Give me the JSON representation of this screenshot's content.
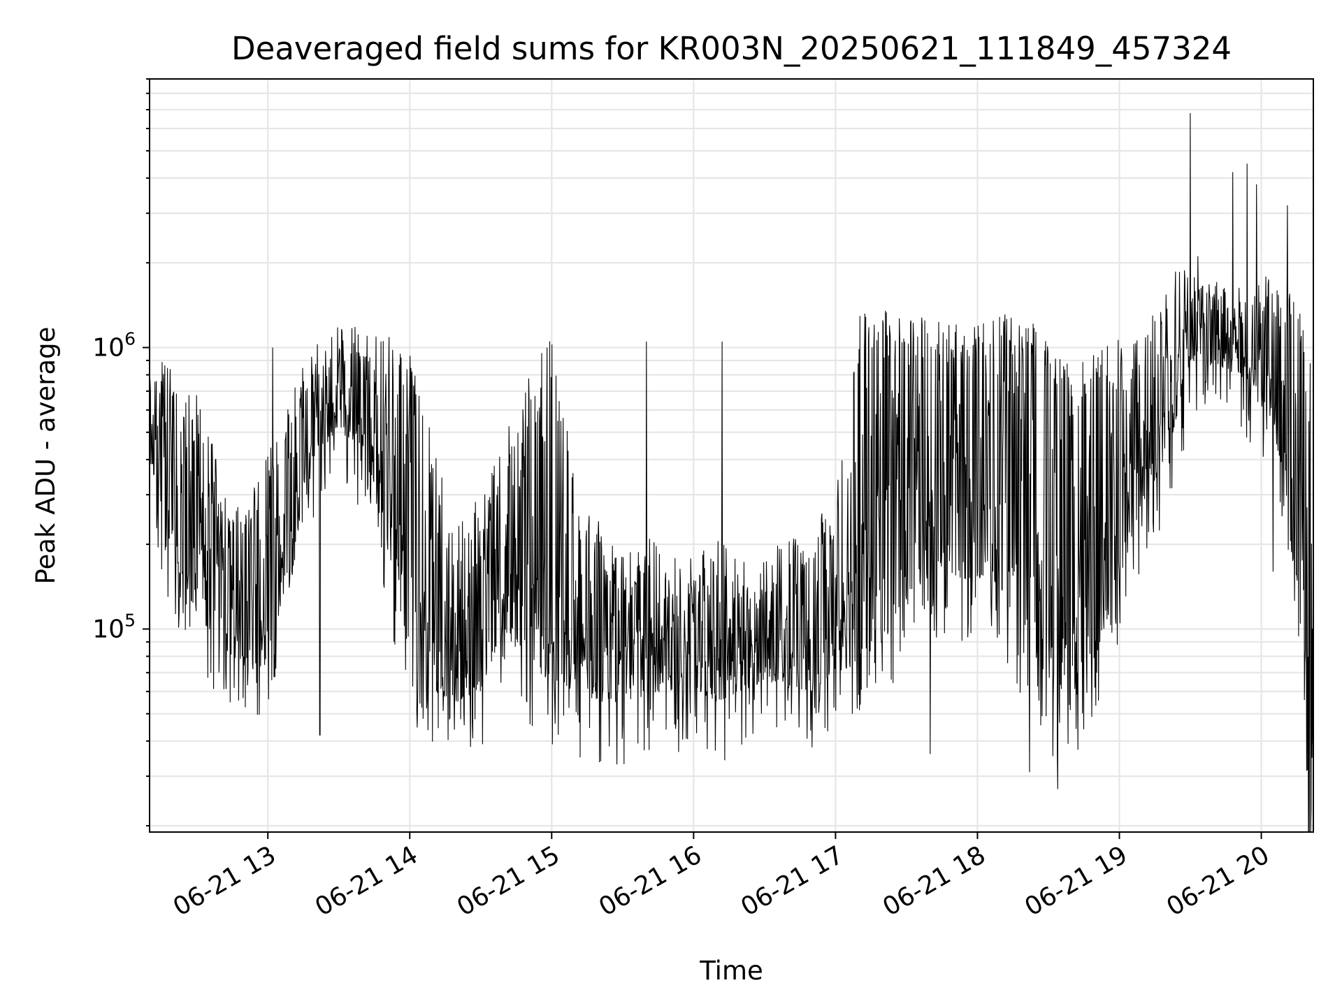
{
  "chart_data": {
    "type": "line",
    "title": "Deaveraged field sums for KR003N_20250621_111849_457324",
    "xlabel": "Time",
    "ylabel": "Peak ADU - average",
    "y_scale": "log",
    "xlim": [
      "06-21 12:10",
      "06-21 20:22"
    ],
    "ylim": [
      19000,
      9000000
    ],
    "grid": true,
    "x_ticks": [
      {
        "value": "06-21 13",
        "label": "06-21 13"
      },
      {
        "value": "06-21 14",
        "label": "06-21 14"
      },
      {
        "value": "06-21 15",
        "label": "06-21 15"
      },
      {
        "value": "06-21 16",
        "label": "06-21 16"
      },
      {
        "value": "06-21 17",
        "label": "06-21 17"
      },
      {
        "value": "06-21 18",
        "label": "06-21 18"
      },
      {
        "value": "06-21 19",
        "label": "06-21 19"
      },
      {
        "value": "06-21 20",
        "label": "06-21 20"
      }
    ],
    "y_ticks": [
      {
        "value": 100000,
        "base": "10",
        "exp": "5"
      },
      {
        "value": 1000000,
        "base": "10",
        "exp": "6"
      }
    ],
    "series": [
      {
        "color": "#000000",
        "x": [
          "06-21 12:10",
          "06-21 12:20",
          "06-21 12:30",
          "06-21 12:40",
          "06-21 12:50",
          "06-21 13:00",
          "06-21 13:10",
          "06-21 13:20",
          "06-21 13:30",
          "06-21 13:40",
          "06-21 13:50",
          "06-21 14:00",
          "06-21 14:10",
          "06-21 14:20",
          "06-21 14:30",
          "06-21 14:40",
          "06-21 14:50",
          "06-21 15:00",
          "06-21 15:10",
          "06-21 15:20",
          "06-21 15:30",
          "06-21 15:40",
          "06-21 15:50",
          "06-21 16:00",
          "06-21 16:10",
          "06-21 16:20",
          "06-21 16:30",
          "06-21 16:40",
          "06-21 16:50",
          "06-21 17:00",
          "06-21 17:10",
          "06-21 17:20",
          "06-21 17:30",
          "06-21 17:40",
          "06-21 17:50",
          "06-21 18:00",
          "06-21 18:10",
          "06-21 18:20",
          "06-21 18:30",
          "06-21 18:40",
          "06-21 18:50",
          "06-21 19:00",
          "06-21 19:10",
          "06-21 19:20",
          "06-21 19:30",
          "06-21 19:40",
          "06-21 19:50",
          "06-21 20:00",
          "06-21 20:10",
          "06-21 20:20"
        ],
        "low": [
          400000,
          180000,
          110000,
          90000,
          70000,
          75000,
          150000,
          420000,
          500000,
          450000,
          200000,
          80000,
          60000,
          55000,
          60000,
          100000,
          70000,
          65000,
          60000,
          55000,
          55000,
          58000,
          60000,
          60000,
          55000,
          60000,
          65000,
          62000,
          60000,
          70000,
          75000,
          90000,
          120000,
          150000,
          150000,
          150000,
          140000,
          90000,
          60000,
          50000,
          80000,
          150000,
          280000,
          400000,
          900000,
          850000,
          800000,
          700000,
          350000,
          25000
        ],
        "high": [
          900000,
          700000,
          600000,
          300000,
          250000,
          350000,
          600000,
          900000,
          1000000,
          1000000,
          950000,
          800000,
          400000,
          200000,
          250000,
          400000,
          700000,
          900000,
          300000,
          200000,
          150000,
          180000,
          150000,
          150000,
          180000,
          150000,
          150000,
          180000,
          200000,
          250000,
          1100000,
          1200000,
          1100000,
          1050000,
          1000000,
          1100000,
          1100000,
          1100000,
          900000,
          700000,
          800000,
          900000,
          900000,
          1600000,
          2000000,
          1500000,
          1400000,
          1600000,
          1400000,
          1000000
        ],
        "spikes": [
          {
            "x": "06-21 13:02",
            "y": 1000000
          },
          {
            "x": "06-21 13:22",
            "y": 42000
          },
          {
            "x": "06-21 13:42",
            "y": 1100000
          },
          {
            "x": "06-21 14:58",
            "y": 1000000
          },
          {
            "x": "06-21 15:12",
            "y": 35000
          },
          {
            "x": "06-21 15:40",
            "y": 1050000
          },
          {
            "x": "06-21 16:12",
            "y": 1050000
          },
          {
            "x": "06-21 16:50",
            "y": 38000
          },
          {
            "x": "06-21 17:20",
            "y": 1250000
          },
          {
            "x": "06-21 17:40",
            "y": 36000
          },
          {
            "x": "06-21 18:22",
            "y": 31000
          },
          {
            "x": "06-21 18:34",
            "y": 27000
          },
          {
            "x": "06-21 19:30",
            "y": 6800000
          },
          {
            "x": "06-21 19:48",
            "y": 4200000
          },
          {
            "x": "06-21 19:54",
            "y": 4500000
          },
          {
            "x": "06-21 19:58",
            "y": 3800000
          },
          {
            "x": "06-21 20:11",
            "y": 3200000
          },
          {
            "x": "06-21 20:05",
            "y": 160000
          },
          {
            "x": "06-21 20:21",
            "y": 23000
          }
        ]
      }
    ]
  }
}
